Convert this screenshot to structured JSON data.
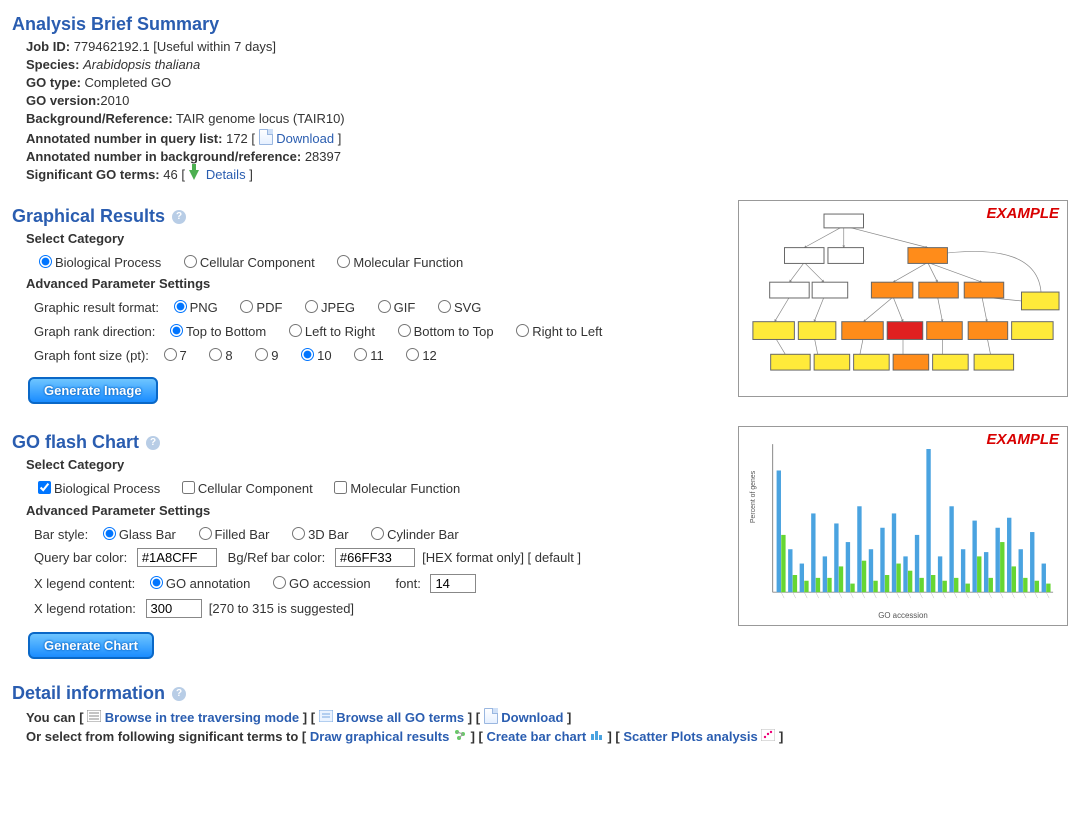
{
  "summary": {
    "title": "Analysis Brief Summary",
    "job_label": "Job ID:",
    "job_value": "779462192.1 [Useful within 7 days]",
    "species_label": "Species:",
    "species_value": "Arabidopsis thaliana",
    "go_type_label": "GO type:",
    "go_type_value": "Completed GO",
    "go_version_label": "GO version:",
    "go_version_value": "2010",
    "bg_label": "Background/Reference:",
    "bg_value": "TAIR genome locus (TAIR10)",
    "ann_query_label": "Annotated number in query list:",
    "ann_query_value": "172",
    "download_text": "Download",
    "ann_bg_label": "Annotated number in background/reference:",
    "ann_bg_value": "28397",
    "sig_label": "Significant GO terms:",
    "sig_value": "46",
    "details_text": "Details"
  },
  "graphical": {
    "title": "Graphical Results",
    "select_category": "Select Category",
    "cat_bio": "Biological Process",
    "cat_cell": "Cellular Component",
    "cat_mol": "Molecular Function",
    "advanced": "Advanced Parameter Settings",
    "format_label": "Graphic result format:",
    "fmt_png": "PNG",
    "fmt_pdf": "PDF",
    "fmt_jpeg": "JPEG",
    "fmt_gif": "GIF",
    "fmt_svg": "SVG",
    "rank_label": "Graph rank direction:",
    "r_tb": "Top to Bottom",
    "r_lr": "Left to Right",
    "r_bt": "Bottom to Top",
    "r_rl": "Right to Left",
    "font_label": "Graph font size (pt):",
    "f7": "7",
    "f8": "8",
    "f9": "9",
    "f10": "10",
    "f11": "11",
    "f12": "12",
    "gen_image": "Generate Image",
    "example": "EXAMPLE"
  },
  "graph_example": {
    "type": "flowchart",
    "colors": {
      "white": "#ffffff",
      "yellow": "#ffea3a",
      "orange": "#ff8c1a",
      "red": "#e02020",
      "border": "#666",
      "edge": "#888"
    }
  },
  "flash": {
    "title": "GO flash Chart",
    "select_category": "Select Category",
    "cat_bio": "Biological Process",
    "cat_cell": "Cellular Component",
    "cat_mol": "Molecular Function",
    "advanced": "Advanced Parameter Settings",
    "bar_style_label": "Bar style:",
    "bs_glass": "Glass Bar",
    "bs_filled": "Filled Bar",
    "bs_3d": "3D Bar",
    "bs_cyl": "Cylinder Bar",
    "qcolor_label": "Query bar color:",
    "qcolor_value": "#1A8CFF",
    "bcolor_label": "Bg/Ref bar color:",
    "bcolor_value": "#66FF33",
    "hex_note": "[HEX format only] [ default ]",
    "xcontent_label": "X legend content:",
    "xc_anno": "GO annotation",
    "xc_acc": "GO accession",
    "font_label": "font:",
    "font_value": "14",
    "xrot_label": "X legend rotation:",
    "xrot_value": "300",
    "xrot_note": "[270 to 315 is suggested]",
    "gen_chart": "Generate Chart",
    "example": "EXAMPLE"
  },
  "bar_example": {
    "type": "bar",
    "pairs": [
      [
        85,
        40
      ],
      [
        30,
        12
      ],
      [
        20,
        8
      ],
      [
        55,
        10
      ],
      [
        25,
        10
      ],
      [
        48,
        18
      ],
      [
        35,
        6
      ],
      [
        60,
        22
      ],
      [
        30,
        8
      ],
      [
        45,
        12
      ],
      [
        55,
        20
      ],
      [
        25,
        15
      ],
      [
        40,
        10
      ],
      [
        100,
        12
      ],
      [
        25,
        8
      ],
      [
        60,
        10
      ],
      [
        30,
        6
      ],
      [
        50,
        25
      ],
      [
        28,
        10
      ],
      [
        45,
        35
      ],
      [
        52,
        18
      ],
      [
        30,
        10
      ],
      [
        42,
        8
      ],
      [
        20,
        6
      ]
    ],
    "query_color": "#4aa3e0",
    "ref_color": "#66d632",
    "axis_color": "#888",
    "background": "#ffffff",
    "x_label": "GO accession",
    "y_label": "Percent of genes"
  },
  "detail": {
    "title": "Detail information",
    "line1_pre": "You can [ ",
    "browse_tree": "Browse in tree traversing mode",
    "mid1": " ] [ ",
    "browse_all": "Browse all GO terms",
    "mid2": " ] [ ",
    "download": "Download",
    "end1": " ]",
    "line2_pre": "Or select from following significant terms to [ ",
    "draw_graph": "Draw graphical results",
    "mid3": " ] [ ",
    "create_bar": "Create bar chart",
    "mid4": " ] [",
    "scatter": "Scatter Plots analysis",
    "end2": " ]"
  }
}
